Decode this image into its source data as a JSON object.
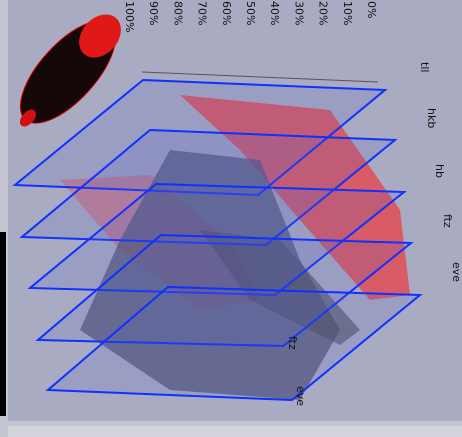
{
  "scale": {
    "labels": [
      "100%",
      "90%",
      "80%",
      "70%",
      "60%",
      "50%",
      "40%",
      "30%",
      "20%",
      "10%",
      "0%"
    ]
  },
  "genes": [
    "tll",
    "hkb",
    "hb",
    "ftz",
    "eve"
  ],
  "plane_labels": [
    "ftz",
    "eve"
  ]
}
